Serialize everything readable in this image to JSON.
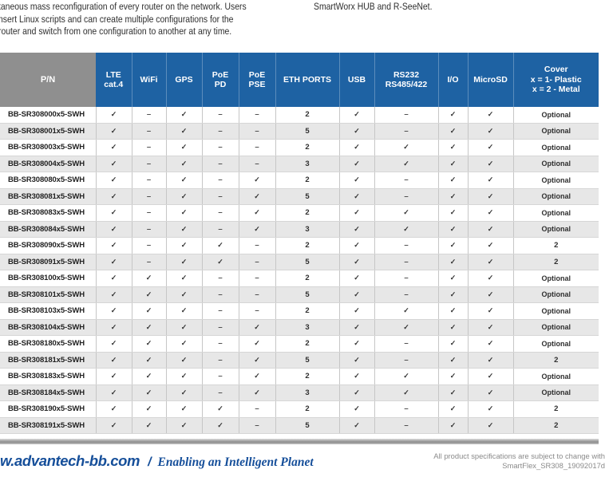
{
  "colors": {
    "header_blue": "#1e62a3",
    "header_gray": "#8f8f8f",
    "row_alt_gray": "#e7e7e7",
    "footer_blue": "#164f9a",
    "note_gray": "#8a8a8a"
  },
  "intro": {
    "left_lines": [
      "taneous mass reconfiguration of every router on the network. Users",
      "nsert Linux scripts and can create multiple configurations for the",
      "router and switch from one configuration to another at any time."
    ],
    "right_text": "SmartWorx HUB and R-SeeNet."
  },
  "table": {
    "columns": [
      {
        "key": "pn",
        "label": "P/N",
        "width": 120
      },
      {
        "key": "lte",
        "label": "LTE\ncat.4",
        "width": 45
      },
      {
        "key": "wifi",
        "label": "WiFi",
        "width": 43
      },
      {
        "key": "gps",
        "label": "GPS",
        "width": 45
      },
      {
        "key": "poe-pd",
        "label": "PoE\nPD",
        "width": 46
      },
      {
        "key": "poe-pse",
        "label": "PoE\nPSE",
        "width": 46
      },
      {
        "key": "eth",
        "label": "ETH PORTS",
        "width": 80
      },
      {
        "key": "usb",
        "label": "USB",
        "width": 44
      },
      {
        "key": "rs232",
        "label": "RS232\nRS485/422",
        "width": 80
      },
      {
        "key": "io",
        "label": "I/O",
        "width": 37
      },
      {
        "key": "microsd",
        "label": "MicroSD",
        "width": 57
      },
      {
        "key": "cover",
        "label": "Cover\nx = 1- Plastic\nx = 2 - Metal",
        "width": 107
      }
    ],
    "rows": [
      [
        "BB-SR308000x5-SWH",
        "✓",
        "–",
        "✓",
        "–",
        "–",
        "2",
        "✓",
        "–",
        "✓",
        "✓",
        "Optional"
      ],
      [
        "BB-SR308001x5-SWH",
        "✓",
        "–",
        "✓",
        "–",
        "–",
        "5",
        "✓",
        "–",
        "✓",
        "✓",
        "Optional"
      ],
      [
        "BB-SR308003x5-SWH",
        "✓",
        "–",
        "✓",
        "–",
        "–",
        "2",
        "✓",
        "✓",
        "✓",
        "✓",
        "Optional"
      ],
      [
        "BB-SR308004x5-SWH",
        "✓",
        "–",
        "✓",
        "–",
        "–",
        "3",
        "✓",
        "✓",
        "✓",
        "✓",
        "Optional"
      ],
      [
        "BB-SR308080x5-SWH",
        "✓",
        "–",
        "✓",
        "–",
        "✓",
        "2",
        "✓",
        "–",
        "✓",
        "✓",
        "Optional"
      ],
      [
        "BB-SR308081x5-SWH",
        "✓",
        "–",
        "✓",
        "–",
        "✓",
        "5",
        "✓",
        "–",
        "✓",
        "✓",
        "Optional"
      ],
      [
        "BB-SR308083x5-SWH",
        "✓",
        "–",
        "✓",
        "–",
        "✓",
        "2",
        "✓",
        "✓",
        "✓",
        "✓",
        "Optional"
      ],
      [
        "BB-SR308084x5-SWH",
        "✓",
        "–",
        "✓",
        "–",
        "✓",
        "3",
        "✓",
        "✓",
        "✓",
        "✓",
        "Optional"
      ],
      [
        "BB-SR308090x5-SWH",
        "✓",
        "–",
        "✓",
        "✓",
        "–",
        "2",
        "✓",
        "–",
        "✓",
        "✓",
        "2"
      ],
      [
        "BB-SR308091x5-SWH",
        "✓",
        "–",
        "✓",
        "✓",
        "–",
        "5",
        "✓",
        "–",
        "✓",
        "✓",
        "2"
      ],
      [
        "BB-SR308100x5-SWH",
        "✓",
        "✓",
        "✓",
        "–",
        "–",
        "2",
        "✓",
        "–",
        "✓",
        "✓",
        "Optional"
      ],
      [
        "BB-SR308101x5-SWH",
        "✓",
        "✓",
        "✓",
        "–",
        "–",
        "5",
        "✓",
        "–",
        "✓",
        "✓",
        "Optional"
      ],
      [
        "BB-SR308103x5-SWH",
        "✓",
        "✓",
        "✓",
        "–",
        "–",
        "2",
        "✓",
        "✓",
        "✓",
        "✓",
        "Optional"
      ],
      [
        "BB-SR308104x5-SWH",
        "✓",
        "✓",
        "✓",
        "–",
        "✓",
        "3",
        "✓",
        "✓",
        "✓",
        "✓",
        "Optional"
      ],
      [
        "BB-SR308180x5-SWH",
        "✓",
        "✓",
        "✓",
        "–",
        "✓",
        "2",
        "✓",
        "–",
        "✓",
        "✓",
        "Optional"
      ],
      [
        "BB-SR308181x5-SWH",
        "✓",
        "✓",
        "✓",
        "–",
        "✓",
        "5",
        "✓",
        "–",
        "✓",
        "✓",
        "2"
      ],
      [
        "BB-SR308183x5-SWH",
        "✓",
        "✓",
        "✓",
        "–",
        "✓",
        "2",
        "✓",
        "✓",
        "✓",
        "✓",
        "Optional"
      ],
      [
        "BB-SR308184x5-SWH",
        "✓",
        "✓",
        "✓",
        "–",
        "✓",
        "3",
        "✓",
        "✓",
        "✓",
        "✓",
        "Optional"
      ],
      [
        "BB-SR308190x5-SWH",
        "✓",
        "✓",
        "✓",
        "✓",
        "–",
        "2",
        "✓",
        "–",
        "✓",
        "✓",
        "2"
      ],
      [
        "BB-SR308191x5-SWH",
        "✓",
        "✓",
        "✓",
        "✓",
        "–",
        "5",
        "✓",
        "–",
        "✓",
        "✓",
        "2"
      ]
    ]
  },
  "footer": {
    "site": "w.advantech-bb.com",
    "slash": "/",
    "tagline": "Enabling an Intelligent Planet",
    "note_line1": "All product specifications are subject to change with",
    "note_line2": "SmartFlex_SR308_19092017d"
  }
}
